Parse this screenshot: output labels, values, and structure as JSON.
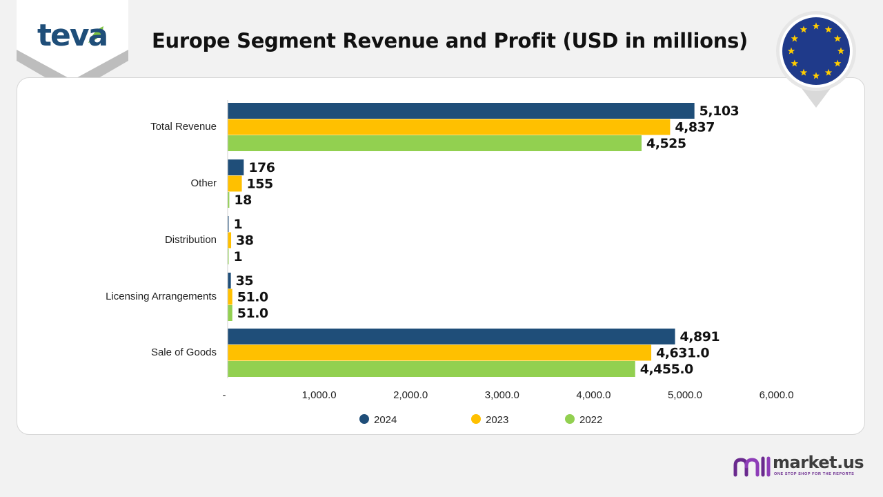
{
  "brand": {
    "logo_text": "teva"
  },
  "title": "Europe Segment Revenue and Profit (USD in millions)",
  "footer": {
    "brand_name": "market.us",
    "tagline": "ONE STOP SHOP FOR THE REPORTS"
  },
  "colors": {
    "series_2024": "#1f4e79",
    "series_2023": "#ffc000",
    "series_2022": "#92d050",
    "eu_blue": "#1f3a8a",
    "eu_star": "#ffcc00",
    "teva_blue": "#1f4e79",
    "teva_green": "#7cc242",
    "brand_purple": "#6a2a8e"
  },
  "chart_data": {
    "type": "bar",
    "orientation": "horizontal",
    "title": "Europe Segment Revenue and Profit (USD in millions)",
    "categories": [
      "Total Revenue",
      "Other",
      "Distribution",
      "Licensing Arrangements",
      "Sale of Goods"
    ],
    "series": [
      {
        "name": "2024",
        "values": [
          5103,
          176,
          1,
          35,
          4891
        ],
        "labels": [
          "5,103",
          "176",
          "1",
          "35",
          "4,891"
        ]
      },
      {
        "name": "2023",
        "values": [
          4837,
          155,
          38,
          51,
          4631
        ],
        "labels": [
          "4,837",
          "155",
          "38",
          "51.0",
          "4,631.0"
        ]
      },
      {
        "name": "2022",
        "values": [
          4525,
          18,
          1,
          51,
          4455
        ],
        "labels": [
          "4,525",
          "18",
          "1",
          "51.0",
          "4,455.0"
        ]
      }
    ],
    "xlim": [
      0,
      6000
    ],
    "xticks": [
      0,
      1000,
      2000,
      3000,
      4000,
      5000,
      6000
    ],
    "xtick_labels": [
      "-",
      "1,000.0",
      "2,000.0",
      "3,000.0",
      "4,000.0",
      "5,000.0",
      "6,000.0"
    ],
    "legend": [
      "2024",
      "2023",
      "2022"
    ],
    "legend_position": "bottom",
    "grid": false
  }
}
